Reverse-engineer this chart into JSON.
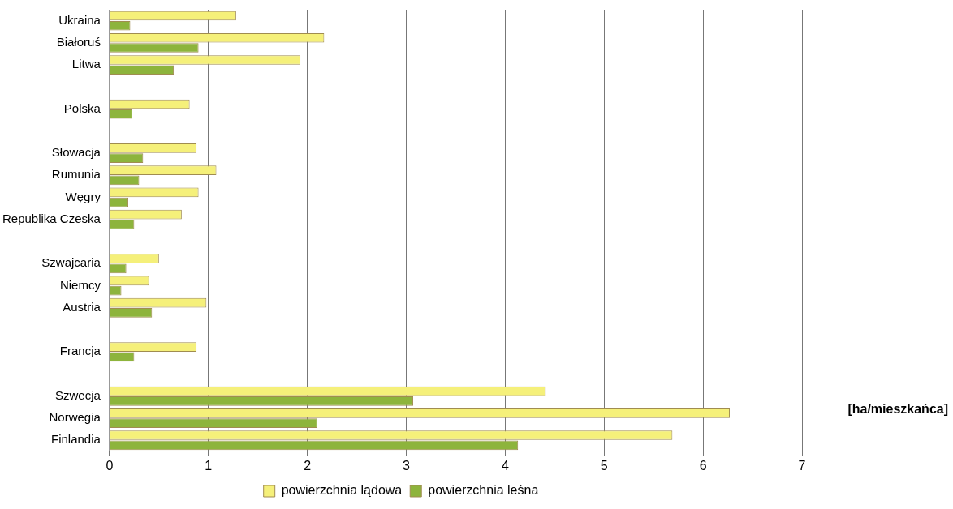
{
  "chart_data": {
    "type": "bar",
    "orientation": "horizontal",
    "xlabel": "[ha/mieszkańca]",
    "categories": [
      "Ukraina",
      "Białoruś",
      "Litwa",
      null,
      "Polska",
      null,
      "Słowacja",
      "Rumunia",
      "Węgry",
      "Republika Czeska",
      null,
      "Szwajcaria",
      "Niemcy",
      "Austria",
      null,
      "Francja",
      null,
      "Szwecja",
      "Norwegia",
      "Finlandia"
    ],
    "series": [
      {
        "name": "powierzchnia lądowa",
        "color": "#f5f07a",
        "values": [
          1.28,
          2.17,
          1.93,
          null,
          0.81,
          null,
          0.88,
          1.08,
          0.9,
          0.73,
          null,
          0.5,
          0.4,
          0.98,
          null,
          0.88,
          null,
          4.41,
          6.27,
          5.69
        ]
      },
      {
        "name": "powierzchnia leśna",
        "color": "#8db43c",
        "values": [
          0.21,
          0.9,
          0.65,
          null,
          0.23,
          null,
          0.34,
          0.3,
          0.19,
          0.25,
          null,
          0.17,
          0.12,
          0.43,
          null,
          0.25,
          null,
          3.07,
          2.1,
          4.13
        ]
      }
    ],
    "xlim": [
      0,
      7
    ],
    "xticks": [
      0,
      1,
      2,
      3,
      4,
      5,
      6,
      7
    ],
    "grid": "x",
    "legend": "bottom"
  }
}
